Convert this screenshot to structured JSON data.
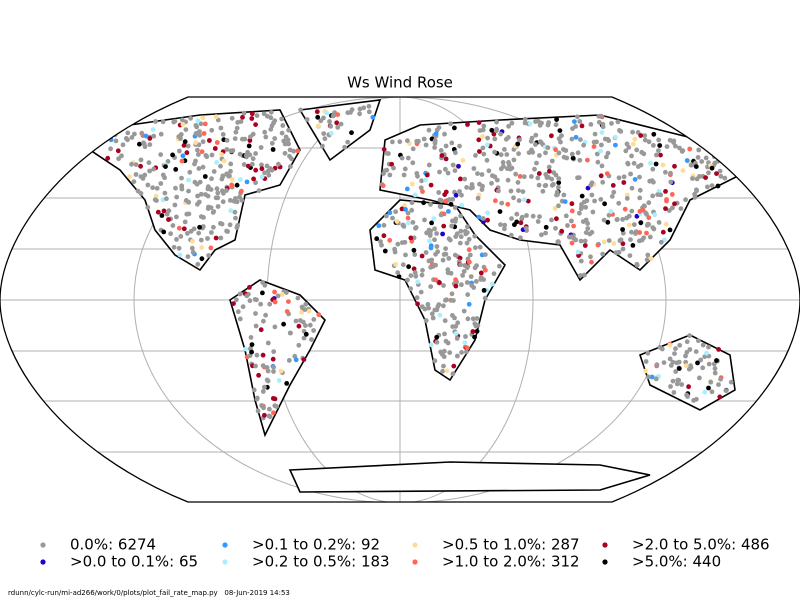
{
  "title": "Ws Wind Rose",
  "legend": [
    {
      "label": "0.0%: 6274",
      "color": "#999999"
    },
    {
      "label": ">0.0 to 0.1%: 65",
      "color": "#2200cc"
    },
    {
      "label": ">0.1 to 0.2%: 92",
      "color": "#3399ff"
    },
    {
      "label": ">0.2 to 0.5%: 183",
      "color": "#aaeeff"
    },
    {
      "label": ">0.5 to 1.0%: 287",
      "color": "#ffdd99"
    },
    {
      "label": ">1.0 to 2.0%: 312",
      "color": "#ff6655"
    },
    {
      "label": ">2.0 to 5.0%: 486",
      "color": "#aa0022"
    },
    {
      "label": ">5.0%: 440",
      "color": "#000000"
    }
  ],
  "footer": "rdunn/cylc-run/mi-ad266/work/0/plots/plot_fail_rate_map.py   08-Jun-2019 14:53"
}
